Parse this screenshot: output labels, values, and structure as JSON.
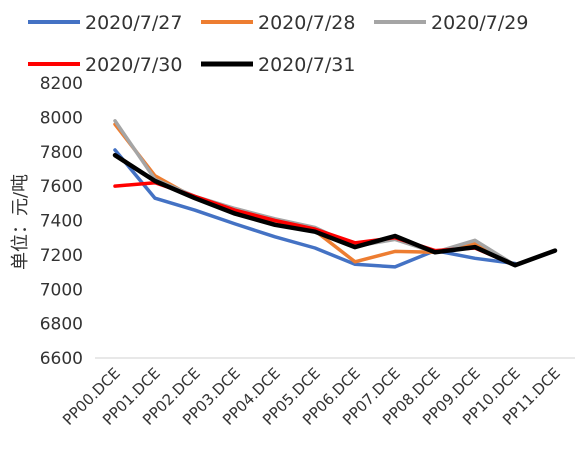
{
  "chart_data": {
    "type": "line",
    "title": "",
    "xlabel": "",
    "ylabel": "单位：元/吨",
    "ylim": [
      6600,
      8200
    ],
    "yticks": [
      6600,
      6800,
      7000,
      7200,
      7400,
      7600,
      7800,
      8000,
      8200
    ],
    "grid": false,
    "legend_position": "top",
    "categories": [
      "PP00.DCE",
      "PP01.DCE",
      "PP02.DCE",
      "PP03.DCE",
      "PP04.DCE",
      "PP05.DCE",
      "PP06.DCE",
      "PP07.DCE",
      "PP08.DCE",
      "PP09.DCE",
      "PP10.DCE",
      "PP11.DCE"
    ],
    "series": [
      {
        "name": "2020/7/27",
        "color": "#4472C4",
        "values": [
          7810,
          7530,
          7460,
          7380,
          7305,
          7240,
          7145,
          7130,
          7225,
          7180,
          7150,
          null
        ]
      },
      {
        "name": "2020/7/28",
        "color": "#ED7D31",
        "values": [
          7960,
          7660,
          7530,
          7440,
          7400,
          7340,
          7160,
          7220,
          7215,
          7265,
          7140,
          null
        ]
      },
      {
        "name": "2020/7/29",
        "color": "#A5A5A5",
        "values": [
          7980,
          7640,
          7540,
          7470,
          7410,
          7360,
          7250,
          7290,
          7215,
          7285,
          7140,
          null
        ]
      },
      {
        "name": "2020/7/30",
        "color": "#FF0000",
        "values": [
          7600,
          7620,
          7540,
          7460,
          7400,
          7350,
          7270,
          7300,
          7225,
          7240,
          7140,
          7225
        ]
      },
      {
        "name": "2020/7/31",
        "color": "#000000",
        "values": [
          7780,
          7630,
          7530,
          7440,
          7375,
          7335,
          7245,
          7310,
          7215,
          7245,
          7140,
          7225
        ]
      }
    ]
  }
}
